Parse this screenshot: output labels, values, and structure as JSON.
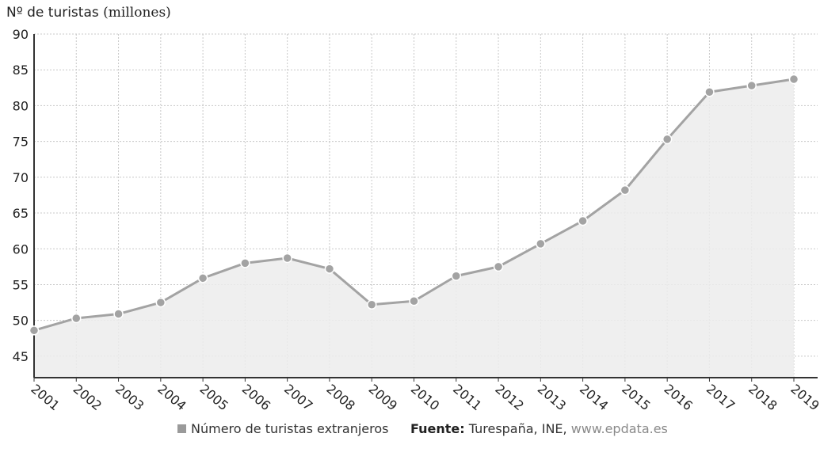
{
  "chart_data": {
    "type": "area",
    "title": "",
    "ylabel_main": "Nº de turistas",
    "ylabel_unit": "(millones)",
    "xlabel": "",
    "x": [
      "2001",
      "2002",
      "2003",
      "2004",
      "2005",
      "2006",
      "2007",
      "2008",
      "2009",
      "2010",
      "2011",
      "2012",
      "2013",
      "2014",
      "2015",
      "2016",
      "2017",
      "2018",
      "2019"
    ],
    "series": [
      {
        "name": "Número de turistas extranjeros",
        "values": [
          48.6,
          50.3,
          50.9,
          52.5,
          55.9,
          58.0,
          58.7,
          57.2,
          52.2,
          52.7,
          56.2,
          57.5,
          60.7,
          63.9,
          68.2,
          75.3,
          81.9,
          82.8,
          83.7
        ]
      }
    ],
    "ylim": [
      42,
      90
    ],
    "yticks": [
      90,
      85,
      80,
      75,
      70,
      65,
      60,
      55,
      50,
      45
    ],
    "grid": true,
    "legend_position": "bottom",
    "colors": {
      "line": "#a3a3a3",
      "marker": "#a3a3a3",
      "fill": "#ececec",
      "grid": "#c8c8c8",
      "axis": "#333333"
    }
  },
  "legend": {
    "label": "Número de turistas extranjeros"
  },
  "source": {
    "label": "Fuente:",
    "text": " Turespaña, INE, ",
    "url": "www.epdata.es"
  }
}
